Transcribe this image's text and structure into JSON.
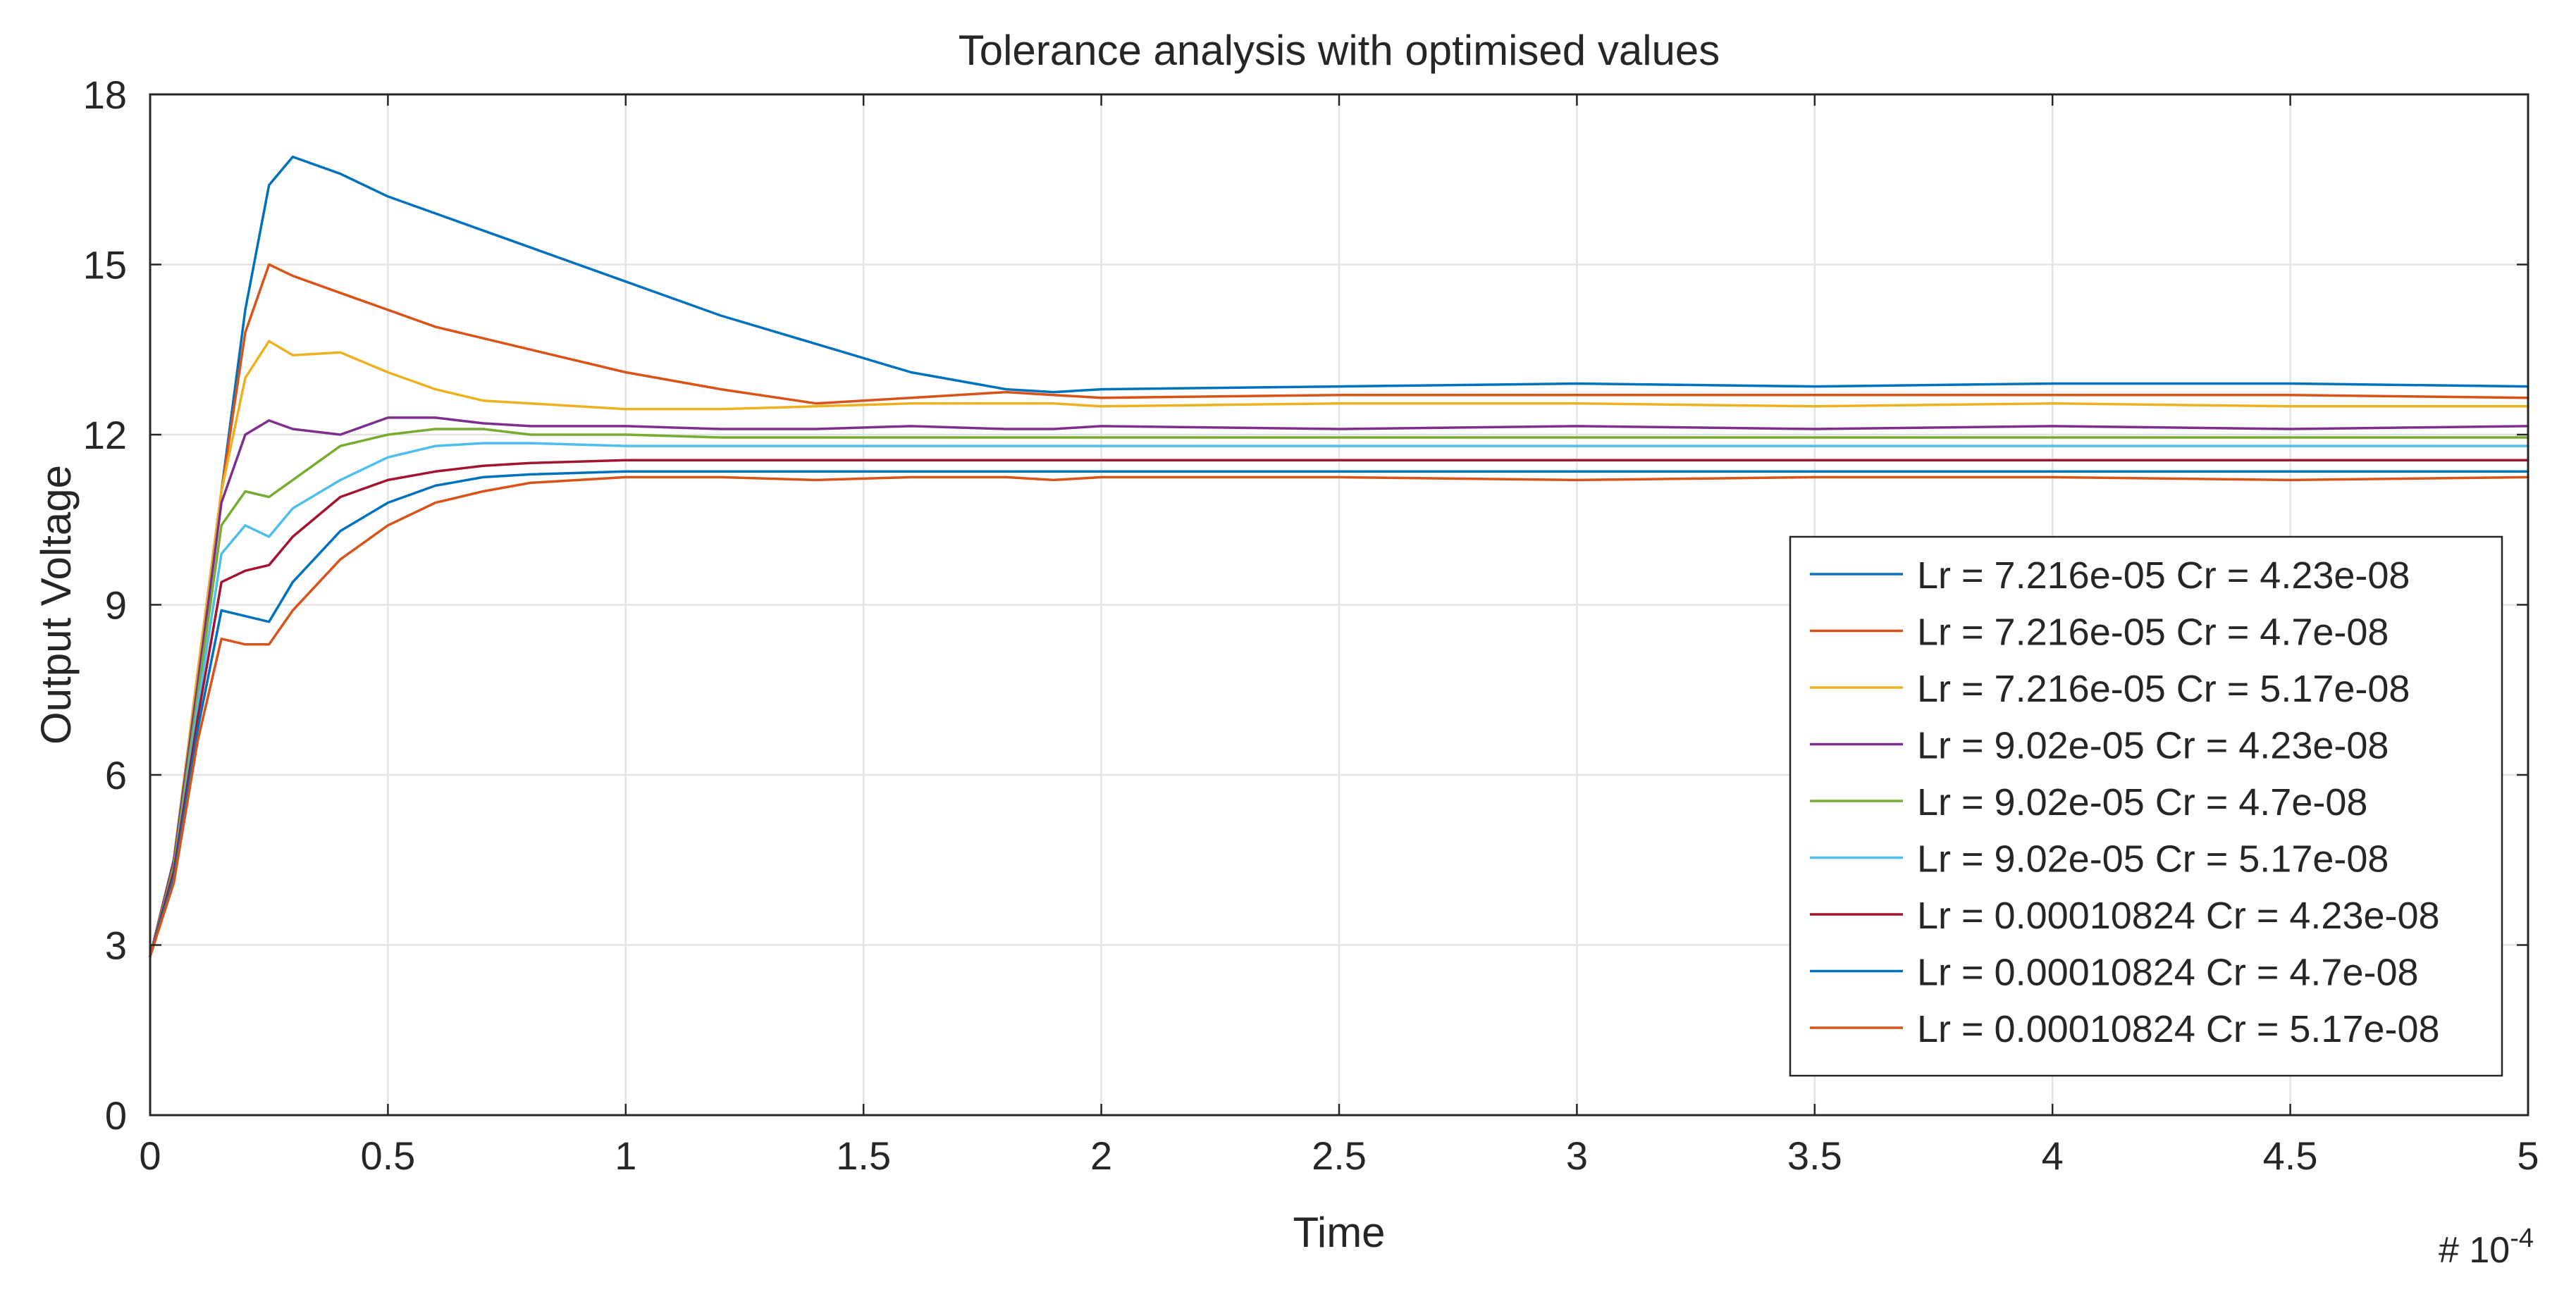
{
  "chart_data": {
    "type": "line",
    "title": "Tolerance analysis with optimised values",
    "xlabel": "Time",
    "ylabel": "Output Voltage",
    "x_multiplier": "# 10",
    "x_multiplier_exponent": "-4",
    "xlim": [
      0,
      5
    ],
    "ylim": [
      0,
      18
    ],
    "xticks": [
      0,
      0.5,
      1,
      1.5,
      2,
      2.5,
      3,
      3.5,
      4,
      4.5,
      5
    ],
    "xtick_labels": [
      "0",
      "0.5",
      "1",
      "1.5",
      "2",
      "2.5",
      "3",
      "3.5",
      "4",
      "4.5",
      "5"
    ],
    "yticks": [
      0,
      3,
      6,
      9,
      12,
      15,
      18
    ],
    "ytick_labels": [
      "0",
      "3",
      "6",
      "9",
      "12",
      "15",
      "18"
    ],
    "grid": true,
    "legend_position": "right",
    "x": [
      0,
      0.05,
      0.1,
      0.15,
      0.2,
      0.25,
      0.3,
      0.4,
      0.5,
      0.6,
      0.7,
      0.8,
      1.0,
      1.2,
      1.4,
      1.6,
      1.8,
      1.9,
      2.0,
      2.5,
      3.0,
      3.5,
      4.0,
      4.5,
      5.0
    ],
    "series": [
      {
        "name": "Lr = 7.216e-05 Cr = 4.23e-08",
        "color": "#0072BD",
        "values": [
          2.8,
          4.5,
          7.8,
          11.0,
          14.2,
          16.4,
          16.9,
          16.6,
          16.2,
          15.9,
          15.6,
          15.3,
          14.7,
          14.1,
          13.6,
          13.1,
          12.8,
          12.75,
          12.8,
          12.85,
          12.9,
          12.85,
          12.9,
          12.9,
          12.85
        ]
      },
      {
        "name": "Lr = 7.216e-05 Cr = 4.7e-08",
        "color": "#D95319",
        "values": [
          2.8,
          4.5,
          7.8,
          11.0,
          13.8,
          15.0,
          14.8,
          14.5,
          14.2,
          13.9,
          13.7,
          13.5,
          13.1,
          12.8,
          12.55,
          12.65,
          12.75,
          12.7,
          12.65,
          12.7,
          12.7,
          12.7,
          12.7,
          12.7,
          12.65
        ]
      },
      {
        "name": "Lr = 7.216e-05 Cr = 5.17e-08",
        "color": "#EDB120",
        "values": [
          2.8,
          4.5,
          7.8,
          11.0,
          13.0,
          13.65,
          13.4,
          13.45,
          13.1,
          12.8,
          12.6,
          12.55,
          12.45,
          12.45,
          12.5,
          12.55,
          12.55,
          12.55,
          12.5,
          12.55,
          12.55,
          12.5,
          12.55,
          12.5,
          12.5
        ]
      },
      {
        "name": "Lr = 9.02e-05 Cr = 4.23e-08",
        "color": "#7E2F8E",
        "values": [
          2.8,
          4.5,
          7.6,
          10.8,
          12.0,
          12.25,
          12.1,
          12.0,
          12.3,
          12.3,
          12.2,
          12.15,
          12.15,
          12.1,
          12.1,
          12.15,
          12.1,
          12.1,
          12.15,
          12.1,
          12.15,
          12.1,
          12.15,
          12.1,
          12.15
        ]
      },
      {
        "name": "Lr = 9.02e-05 Cr = 4.7e-08",
        "color": "#77AC30",
        "values": [
          2.8,
          4.4,
          7.4,
          10.4,
          11.0,
          10.9,
          11.2,
          11.8,
          12.0,
          12.1,
          12.1,
          12.0,
          12.0,
          11.95,
          11.95,
          11.95,
          11.95,
          11.95,
          11.95,
          11.95,
          11.95,
          11.95,
          11.95,
          11.95,
          11.95
        ]
      },
      {
        "name": "Lr = 9.02e-05 Cr = 5.17e-08",
        "color": "#4DBEEE",
        "values": [
          2.8,
          4.3,
          7.2,
          9.9,
          10.4,
          10.2,
          10.7,
          11.2,
          11.6,
          11.8,
          11.85,
          11.85,
          11.8,
          11.8,
          11.8,
          11.8,
          11.8,
          11.8,
          11.8,
          11.8,
          11.8,
          11.8,
          11.8,
          11.8,
          11.8
        ]
      },
      {
        "name": "Lr = 0.00010824 Cr = 4.23e-08",
        "color": "#A2142F",
        "values": [
          2.8,
          4.3,
          7.0,
          9.4,
          9.6,
          9.7,
          10.2,
          10.9,
          11.2,
          11.35,
          11.45,
          11.5,
          11.55,
          11.55,
          11.55,
          11.55,
          11.55,
          11.55,
          11.55,
          11.55,
          11.55,
          11.55,
          11.55,
          11.55,
          11.55
        ]
      },
      {
        "name": "Lr = 0.00010824 Cr = 4.7e-08",
        "color": "#0072BD",
        "values": [
          2.8,
          4.2,
          6.8,
          8.9,
          8.8,
          8.7,
          9.4,
          10.3,
          10.8,
          11.1,
          11.25,
          11.3,
          11.35,
          11.35,
          11.35,
          11.35,
          11.35,
          11.35,
          11.35,
          11.35,
          11.35,
          11.35,
          11.35,
          11.35,
          11.35
        ]
      },
      {
        "name": "Lr = 0.00010824 Cr = 5.17e-08",
        "color": "#D95319",
        "values": [
          2.8,
          4.1,
          6.6,
          8.4,
          8.3,
          8.3,
          8.9,
          9.8,
          10.4,
          10.8,
          11.0,
          11.15,
          11.25,
          11.25,
          11.2,
          11.25,
          11.25,
          11.2,
          11.25,
          11.25,
          11.2,
          11.25,
          11.25,
          11.2,
          11.25
        ]
      }
    ]
  }
}
